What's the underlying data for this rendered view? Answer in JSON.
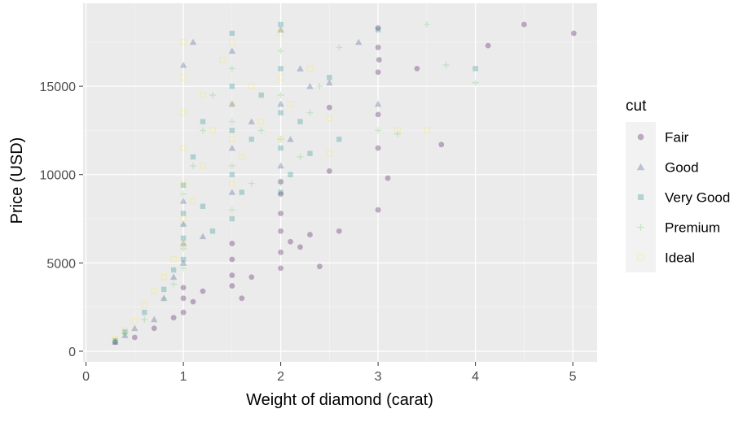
{
  "chart_data": {
    "type": "scatter",
    "title": "",
    "xlabel": "Weight of diamond (carat)",
    "ylabel": "Price (USD)",
    "xlim": [
      -0.03,
      5.25
    ],
    "ylim": [
      -600,
      19700
    ],
    "x_ticks": [
      0,
      1,
      2,
      3,
      4,
      5
    ],
    "y_ticks": [
      0,
      5000,
      10000,
      15000
    ],
    "grid": true,
    "point_alpha": 0.3,
    "legend": {
      "title": "cut",
      "position": "right",
      "entries": [
        {
          "name": "Fair",
          "shape": "circle",
          "color": "#440154"
        },
        {
          "name": "Good",
          "shape": "triangle",
          "color": "#3b528b"
        },
        {
          "name": "Very Good",
          "shape": "square",
          "color": "#21908c"
        },
        {
          "name": "Premium",
          "shape": "plus",
          "color": "#5dc863"
        },
        {
          "name": "Ideal",
          "shape": "square-open",
          "color": "#fde725"
        }
      ]
    },
    "series": [
      {
        "name": "Fair",
        "points": [
          [
            0.3,
            520
          ],
          [
            0.5,
            780
          ],
          [
            0.7,
            1300
          ],
          [
            0.9,
            1900
          ],
          [
            1.0,
            2200
          ],
          [
            1.0,
            3000
          ],
          [
            1.0,
            3600
          ],
          [
            1.1,
            2800
          ],
          [
            1.2,
            3400
          ],
          [
            1.5,
            3700
          ],
          [
            1.5,
            4300
          ],
          [
            1.5,
            5200
          ],
          [
            1.5,
            6100
          ],
          [
            1.6,
            3000
          ],
          [
            1.7,
            4200
          ],
          [
            2.0,
            4700
          ],
          [
            2.0,
            5600
          ],
          [
            2.0,
            6800
          ],
          [
            2.0,
            7800
          ],
          [
            2.0,
            8900
          ],
          [
            2.0,
            9600
          ],
          [
            2.1,
            6200
          ],
          [
            2.2,
            5900
          ],
          [
            2.3,
            6600
          ],
          [
            2.4,
            4800
          ],
          [
            2.5,
            10200
          ],
          [
            2.5,
            13800
          ],
          [
            2.6,
            6800
          ],
          [
            3.0,
            18300
          ],
          [
            3.0,
            17200
          ],
          [
            3.0,
            15800
          ],
          [
            3.0,
            13400
          ],
          [
            3.0,
            11500
          ],
          [
            3.0,
            8000
          ],
          [
            3.01,
            16500
          ],
          [
            3.1,
            9800
          ],
          [
            3.4,
            16000
          ],
          [
            3.65,
            11700
          ],
          [
            4.13,
            17300
          ],
          [
            4.5,
            18500
          ],
          [
            5.01,
            18000
          ]
        ]
      },
      {
        "name": "Good",
        "points": [
          [
            0.3,
            520
          ],
          [
            0.4,
            900
          ],
          [
            0.5,
            1300
          ],
          [
            0.7,
            1800
          ],
          [
            0.8,
            3000
          ],
          [
            0.9,
            4200
          ],
          [
            1.0,
            5000
          ],
          [
            1.0,
            6100
          ],
          [
            1.0,
            7200
          ],
          [
            1.0,
            8500
          ],
          [
            1.0,
            16200
          ],
          [
            1.1,
            17500
          ],
          [
            1.2,
            6500
          ],
          [
            1.5,
            9000
          ],
          [
            1.5,
            11500
          ],
          [
            1.5,
            14000
          ],
          [
            1.5,
            17000
          ],
          [
            1.7,
            13000
          ],
          [
            2.0,
            10500
          ],
          [
            2.0,
            14000
          ],
          [
            2.0,
            18200
          ],
          [
            2.1,
            12000
          ],
          [
            2.2,
            16000
          ],
          [
            2.3,
            15000
          ],
          [
            2.5,
            15200
          ],
          [
            2.8,
            17500
          ],
          [
            3.0,
            14000
          ]
        ]
      },
      {
        "name": "Very Good",
        "points": [
          [
            0.3,
            600
          ],
          [
            0.4,
            1100
          ],
          [
            0.6,
            2200
          ],
          [
            0.8,
            3500
          ],
          [
            0.9,
            4600
          ],
          [
            1.0,
            5200
          ],
          [
            1.0,
            6400
          ],
          [
            1.0,
            7800
          ],
          [
            1.0,
            9400
          ],
          [
            1.1,
            11000
          ],
          [
            1.2,
            8200
          ],
          [
            1.2,
            13000
          ],
          [
            1.3,
            6800
          ],
          [
            1.5,
            7500
          ],
          [
            1.5,
            10000
          ],
          [
            1.5,
            12500
          ],
          [
            1.5,
            15000
          ],
          [
            1.5,
            18000
          ],
          [
            1.6,
            9000
          ],
          [
            1.7,
            12000
          ],
          [
            1.8,
            14500
          ],
          [
            2.0,
            9000
          ],
          [
            2.0,
            11500
          ],
          [
            2.0,
            13500
          ],
          [
            2.0,
            16000
          ],
          [
            2.0,
            18500
          ],
          [
            2.1,
            10000
          ],
          [
            2.2,
            13000
          ],
          [
            2.3,
            11200
          ],
          [
            2.5,
            15500
          ],
          [
            2.6,
            12000
          ],
          [
            3.0,
            18200
          ],
          [
            4.0,
            16000
          ]
        ]
      },
      {
        "name": "Premium",
        "points": [
          [
            0.3,
            580
          ],
          [
            0.4,
            1000
          ],
          [
            0.6,
            1800
          ],
          [
            0.8,
            3000
          ],
          [
            0.9,
            3800
          ],
          [
            1.0,
            4700
          ],
          [
            1.0,
            5800
          ],
          [
            1.0,
            7200
          ],
          [
            1.0,
            8900
          ],
          [
            1.1,
            10500
          ],
          [
            1.2,
            12500
          ],
          [
            1.3,
            14500
          ],
          [
            1.5,
            8000
          ],
          [
            1.5,
            10500
          ],
          [
            1.5,
            13000
          ],
          [
            1.5,
            16000
          ],
          [
            1.7,
            9500
          ],
          [
            1.8,
            12500
          ],
          [
            2.0,
            9500
          ],
          [
            2.0,
            12000
          ],
          [
            2.0,
            14500
          ],
          [
            2.0,
            17000
          ],
          [
            2.2,
            11000
          ],
          [
            2.3,
            13500
          ],
          [
            2.4,
            15000
          ],
          [
            2.6,
            17200
          ],
          [
            3.0,
            12500
          ],
          [
            3.2,
            12300
          ],
          [
            3.5,
            18500
          ],
          [
            3.7,
            16200
          ],
          [
            4.0,
            15200
          ]
        ]
      },
      {
        "name": "Ideal",
        "points": [
          [
            0.3,
            700
          ],
          [
            0.4,
            1200
          ],
          [
            0.5,
            1700
          ],
          [
            0.6,
            2600
          ],
          [
            0.7,
            3400
          ],
          [
            0.8,
            4200
          ],
          [
            0.9,
            5200
          ],
          [
            1.0,
            6000
          ],
          [
            1.0,
            7500
          ],
          [
            1.0,
            9500
          ],
          [
            1.0,
            11500
          ],
          [
            1.0,
            13500
          ],
          [
            1.0,
            15500
          ],
          [
            1.0,
            17500
          ],
          [
            1.1,
            8500
          ],
          [
            1.2,
            10500
          ],
          [
            1.2,
            14500
          ],
          [
            1.3,
            12500
          ],
          [
            1.4,
            16500
          ],
          [
            1.5,
            9500
          ],
          [
            1.5,
            12000
          ],
          [
            1.5,
            14000
          ],
          [
            1.5,
            17500
          ],
          [
            1.6,
            11000
          ],
          [
            1.7,
            15000
          ],
          [
            1.8,
            13000
          ],
          [
            2.0,
            12000
          ],
          [
            2.0,
            15500
          ],
          [
            2.0,
            18000
          ],
          [
            2.1,
            14000
          ],
          [
            2.3,
            16000
          ],
          [
            2.5,
            13200
          ],
          [
            2.5,
            11200
          ],
          [
            3.2,
            12500
          ],
          [
            3.5,
            12500
          ]
        ]
      }
    ]
  }
}
